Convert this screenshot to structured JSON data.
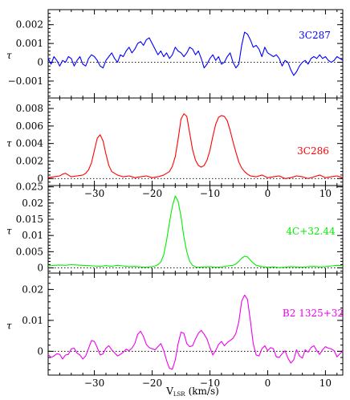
{
  "chart_data": [
    {
      "type": "line",
      "source_label": "3C287",
      "ylabel": "τ",
      "color": "#0000ff",
      "xlim": [
        -38,
        13
      ],
      "ylim": [
        -0.0019,
        0.0028
      ],
      "y_ticks": [
        {
          "v": -0.001,
          "label": "−0.001"
        },
        {
          "v": 0,
          "label": "0"
        },
        {
          "v": 0.001,
          "label": "0.001"
        },
        {
          "v": 0.002,
          "label": "0.002"
        }
      ],
      "x_tick_labels_shown": false,
      "grid": false,
      "x": [
        -38,
        -37.5,
        -37,
        -36.5,
        -36,
        -35.5,
        -35,
        -34.5,
        -34,
        -33.5,
        -33,
        -32.5,
        -32,
        -31.5,
        -31,
        -30.5,
        -30,
        -29.5,
        -29,
        -28.5,
        -28,
        -27.5,
        -27,
        -26.5,
        -26,
        -25.5,
        -25,
        -24.5,
        -24,
        -23.5,
        -23,
        -22.5,
        -22,
        -21.5,
        -21,
        -20.5,
        -20,
        -19.5,
        -19,
        -18.5,
        -18,
        -17.5,
        -17,
        -16.5,
        -16,
        -15.5,
        -15,
        -14.5,
        -14,
        -13.5,
        -13,
        -12.5,
        -12,
        -11.5,
        -11,
        -10.5,
        -10,
        -9.5,
        -9,
        -8.5,
        -8,
        -7.5,
        -7,
        -6.5,
        -6,
        -5.5,
        -5,
        -4.5,
        -4,
        -3.5,
        -3,
        -2.5,
        -2,
        -1.5,
        -1,
        -0.5,
        0,
        0.5,
        1,
        1.5,
        2,
        2.5,
        3,
        3.5,
        4,
        4.5,
        5,
        5.5,
        6,
        6.5,
        7,
        7.5,
        8,
        8.5,
        9,
        9.5,
        10,
        10.5,
        11,
        11.5,
        12,
        12.5,
        13
      ],
      "y": [
        0.0002,
        -0.0001,
        0.0003,
        0.0001,
        -0.0002,
        0.0001,
        0,
        0.0003,
        0.0002,
        -0.0002,
        0.0001,
        0.0003,
        -0.0001,
        -0.0002,
        0.0002,
        0.0004,
        0.0003,
        0.0001,
        -0.0002,
        -0.0003,
        0.0001,
        0.0003,
        0.0005,
        0.0002,
        0,
        0.0004,
        0.0003,
        0.0006,
        0.0008,
        0.0005,
        0.0007,
        0.001,
        0.0011,
        0.0009,
        0.0012,
        0.0013,
        0.001,
        0.0007,
        0.0004,
        0.0006,
        0.0003,
        0.0005,
        0.0002,
        0.0004,
        0.0008,
        0.0006,
        0.0005,
        0.0003,
        0.0005,
        0.0008,
        0.0007,
        0.0004,
        0.0006,
        0.0002,
        -0.0003,
        -0.0001,
        0.0002,
        0.0004,
        0.0001,
        0.0003,
        -0.0001,
        0,
        0.0003,
        0.0005,
        0,
        -0.0003,
        -0.0001,
        0.0009,
        0.0016,
        0.0015,
        0.0012,
        0.0008,
        0.0009,
        0.0007,
        0.0003,
        0.0008,
        0.0005,
        0.0004,
        0.0003,
        0.0004,
        0.0002,
        -0.0002,
        0.0001,
        0,
        -0.0004,
        -0.0007,
        -0.0005,
        -0.0002,
        0,
        0.0001,
        -0.0001,
        0.0002,
        0.0003,
        0.0002,
        0.0004,
        0.0002,
        0.0003,
        0.0001,
        0,
        0.0001,
        0.0003,
        0.0002,
        0.0001
      ]
    },
    {
      "type": "line",
      "source_label": "3C286",
      "ylabel": "τ",
      "color": "#ff0000",
      "xlim": [
        -38,
        13
      ],
      "ylim": [
        -0.0008,
        0.0092
      ],
      "y_ticks": [
        {
          "v": 0,
          "label": "0"
        },
        {
          "v": 0.002,
          "label": "0.002"
        },
        {
          "v": 0.004,
          "label": "0.004"
        },
        {
          "v": 0.006,
          "label": "0.006"
        },
        {
          "v": 0.008,
          "label": "0.008"
        }
      ],
      "x_ticks_labeled": [
        -30,
        -20,
        -10,
        0,
        10
      ],
      "grid": false,
      "x": [
        -38,
        -37,
        -36,
        -35.5,
        -35,
        -34.5,
        -34,
        -33,
        -32,
        -31.5,
        -31,
        -30.5,
        -30,
        -29.5,
        -29,
        -28.5,
        -28,
        -27.5,
        -27,
        -26,
        -25,
        -24,
        -23,
        -22,
        -21,
        -20,
        -19,
        -18,
        -17,
        -16.5,
        -16,
        -15.5,
        -15,
        -14.5,
        -14,
        -13.5,
        -13,
        -12.5,
        -12,
        -11.5,
        -11,
        -10.5,
        -10,
        -9.5,
        -9,
        -8.5,
        -8,
        -7.5,
        -7,
        -6.5,
        -6,
        -5.5,
        -5,
        -4.5,
        -4,
        -3.5,
        -3,
        -2,
        -1,
        0,
        1,
        2,
        3,
        4,
        5,
        6,
        7,
        8,
        9,
        10,
        11,
        12,
        13
      ],
      "y": [
        0.0001,
        0.0002,
        0.0003,
        0.0005,
        0.0006,
        0.0004,
        0.0002,
        0.0003,
        0.0004,
        0.0006,
        0.001,
        0.0018,
        0.0032,
        0.0046,
        0.005,
        0.0043,
        0.0028,
        0.0015,
        0.0008,
        0.0004,
        0.0002,
        0.0003,
        0.0001,
        0.0002,
        0.0003,
        0.0001,
        0.0002,
        0.0004,
        0.0008,
        0.0014,
        0.0025,
        0.0045,
        0.0068,
        0.0074,
        0.0071,
        0.0052,
        0.0033,
        0.0021,
        0.0015,
        0.0013,
        0.0015,
        0.0021,
        0.0032,
        0.0048,
        0.0062,
        0.007,
        0.0072,
        0.0071,
        0.0066,
        0.0055,
        0.0042,
        0.003,
        0.0019,
        0.0012,
        0.0008,
        0.0005,
        0.0003,
        0.0002,
        0.0004,
        0.0001,
        0.0002,
        0.0003,
        0,
        0.0001,
        0.0003,
        0.0002,
        0,
        0.0002,
        0.0004,
        0.0001,
        0.0002,
        0.0003,
        0.0001
      ]
    },
    {
      "type": "line",
      "source_label": "4C+32.44",
      "ylabel": "τ",
      "color": "#00ee00",
      "xlim": [
        -38,
        13
      ],
      "ylim": [
        -0.0016,
        0.0254
      ],
      "y_ticks": [
        {
          "v": 0,
          "label": "0"
        },
        {
          "v": 0.005,
          "label": "0.005"
        },
        {
          "v": 0.01,
          "label": "0.01"
        },
        {
          "v": 0.015,
          "label": "0.015"
        },
        {
          "v": 0.02,
          "label": "0.02"
        },
        {
          "v": 0.025,
          "label": "0.025"
        }
      ],
      "x_tick_labels_shown": false,
      "grid": false,
      "x": [
        -38,
        -37,
        -36,
        -35,
        -34,
        -33,
        -32,
        -31,
        -30,
        -29,
        -28,
        -27,
        -26,
        -25,
        -24,
        -23,
        -22,
        -21,
        -20,
        -19.5,
        -19,
        -18.5,
        -18,
        -17.5,
        -17,
        -16.5,
        -16,
        -15.5,
        -15,
        -14.5,
        -14,
        -13.5,
        -13,
        -12.5,
        -12,
        -11,
        -10,
        -9,
        -8,
        -7,
        -6,
        -5.5,
        -5,
        -4.5,
        -4,
        -3.5,
        -3,
        -2.5,
        -2,
        -1,
        0,
        1,
        2,
        3,
        4,
        5,
        6,
        7,
        8,
        9,
        10,
        11,
        12,
        13
      ],
      "y": [
        0.0006,
        0.0008,
        0.0009,
        0.0008,
        0.001,
        0.0009,
        0.0008,
        0.0007,
        0.0006,
        0.0005,
        0.0007,
        0.0005,
        0.0008,
        0.0006,
        0.0004,
        0.0005,
        0.0003,
        0.0002,
        0.0004,
        0.0006,
        0.001,
        0.0018,
        0.004,
        0.0085,
        0.014,
        0.019,
        0.0222,
        0.0205,
        0.0158,
        0.0095,
        0.005,
        0.002,
        0.0008,
        0.0003,
        0.0002,
        0.0003,
        0.0004,
        0.0002,
        0.0003,
        0.0006,
        0.0008,
        0.0012,
        0.002,
        0.003,
        0.0036,
        0.0034,
        0.0024,
        0.0015,
        0.0008,
        0.0004,
        0.0002,
        0.0003,
        0.0001,
        0.0002,
        0.0004,
        0.0003,
        0.0002,
        0.0004,
        0.0005,
        0.0003,
        0.0004,
        0.0006,
        0.0008,
        0.0007
      ]
    },
    {
      "type": "line",
      "source_label": "B2 1325+32",
      "ylabel": "τ",
      "color": "#ee00ee",
      "xlim": [
        -38,
        13
      ],
      "ylim": [
        -0.0077,
        0.0253
      ],
      "y_ticks": [
        {
          "v": 0,
          "label": "0"
        },
        {
          "v": 0.01,
          "label": "0.01"
        },
        {
          "v": 0.02,
          "label": "0.02"
        }
      ],
      "x_ticks_labeled": [
        -30,
        -20,
        -10,
        0,
        10
      ],
      "xlabel": "V",
      "xlabel_sub": "LSR",
      "xlabel_unit": "(km/s)",
      "grid": false,
      "x": [
        -38,
        -37.5,
        -37,
        -36.5,
        -36,
        -35.5,
        -35,
        -34.5,
        -34,
        -33.5,
        -33,
        -32.5,
        -32,
        -31.5,
        -31,
        -30.5,
        -30,
        -29.5,
        -29,
        -28.5,
        -28,
        -27.5,
        -27,
        -26.5,
        -26,
        -25.5,
        -25,
        -24.5,
        -24,
        -23.5,
        -23,
        -22.5,
        -22,
        -21.5,
        -21,
        -20.5,
        -20,
        -19.5,
        -19,
        -18.5,
        -18,
        -17.5,
        -17,
        -16.5,
        -16,
        -15.5,
        -15,
        -14.5,
        -14,
        -13.5,
        -13,
        -12.5,
        -12,
        -11.5,
        -11,
        -10.5,
        -10,
        -9.5,
        -9,
        -8.5,
        -8,
        -7.5,
        -7,
        -6.5,
        -6,
        -5.5,
        -5,
        -4.5,
        -4,
        -3.5,
        -3,
        -2.5,
        -2,
        -1.5,
        -1,
        -0.5,
        0,
        0.5,
        1,
        1.5,
        2,
        2.5,
        3,
        3.5,
        4,
        4.5,
        5,
        5.5,
        6,
        6.5,
        7,
        7.5,
        8,
        8.5,
        9,
        9.5,
        10,
        10.5,
        11,
        11.5,
        12,
        12.5,
        13
      ],
      "y": [
        -0.001,
        -0.002,
        -0.0015,
        -0.0008,
        -0.001,
        -0.0025,
        -0.0012,
        -0.001,
        0.0008,
        0.001,
        -0.0006,
        -0.0012,
        -0.0025,
        -0.0015,
        0.001,
        0.0035,
        0.0032,
        0.0012,
        -0.0012,
        -0.0008,
        0.001,
        0.0018,
        0.0005,
        -0.0005,
        -0.0015,
        -0.001,
        -0.0003,
        0.0007,
        0.0002,
        0.001,
        0.0025,
        0.0055,
        0.0065,
        0.0048,
        0.0022,
        0.0012,
        0.0008,
        0.0005,
        0.0015,
        0.0025,
        0.0003,
        -0.003,
        -0.0055,
        -0.0058,
        -0.0028,
        0.0025,
        0.0062,
        0.0058,
        0.0025,
        0.0015,
        0.0018,
        0.004,
        0.0058,
        0.0068,
        0.0055,
        0.004,
        0.0012,
        -0.0012,
        0.0003,
        0.0022,
        0.0032,
        0.0018,
        0.0028,
        0.0035,
        0.0042,
        0.0058,
        0.0095,
        0.0162,
        0.0182,
        0.0168,
        0.01,
        0.0025,
        -0.0012,
        -0.0015,
        0.0008,
        0.0018,
        0.0002,
        0.0012,
        0.0008,
        -0.0018,
        -0.002,
        -0.0008,
        0.0002,
        -0.0022,
        -0.0038,
        -0.0028,
        0.0005,
        -0.0015,
        -0.0022,
        0.0005,
        -0.0003,
        0.0012,
        0.0018,
        0.0002,
        -0.001,
        0.0005,
        0.0015,
        0.001,
        0.0008,
        0.0002,
        -0.0018,
        -0.0008,
        0
      ]
    }
  ]
}
